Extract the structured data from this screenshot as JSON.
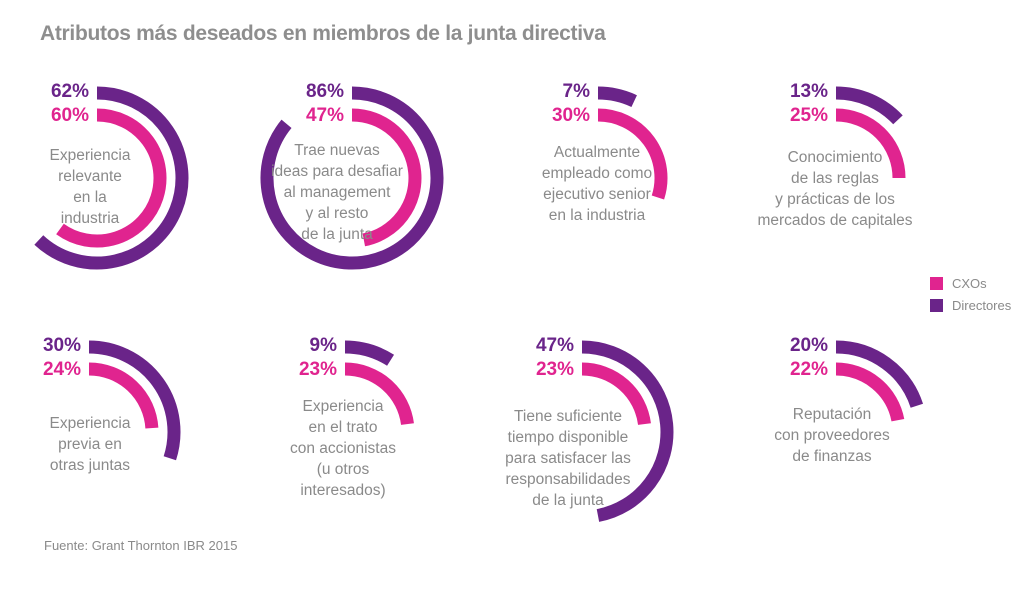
{
  "chart_data": {
    "type": "radial-bar",
    "title": "Atributos más deseados en miembros de la junta directiva",
    "source": "Fuente: Grant Thornton IBR 2015",
    "legend": {
      "placement": "right",
      "entries": [
        "CXOs",
        "Directores"
      ]
    },
    "series": [
      {
        "name": "CXOs",
        "color": "#e0248f"
      },
      {
        "name": "Directores",
        "color": "#6a2489"
      }
    ],
    "categories": [
      {
        "label": "Experiencia\nrelevante\nen la\nindustria",
        "CXOs": 60,
        "Directores": 62
      },
      {
        "label": "Trae nuevas\nideas para desafiar\nal management\ny al resto\nde la junta",
        "CXOs": 47,
        "Directores": 86
      },
      {
        "label": "Actualmente\nempleado como\nejecutivo senior\nen la industria",
        "CXOs": 30,
        "Directores": 7
      },
      {
        "label": "Conocimiento\nde las reglas\ny prácticas de los\nmercados de capitales",
        "CXOs": 25,
        "Directores": 13
      },
      {
        "label": "Experiencia\nprevia en\notras juntas",
        "CXOs": 24,
        "Directores": 30
      },
      {
        "label": "Experiencia\nen el trato\ncon accionistas\n(u otros\ninteresados)",
        "CXOs": 23,
        "Directores": 9
      },
      {
        "label": "Tiene suficiente\ntiempo disponible\npara satisfacer las\nresponsabilidades\nde la junta",
        "CXOs": 23,
        "Directores": 47
      },
      {
        "label": "Reputación\ncon proveedores\nde finanzas",
        "CXOs": 22,
        "Directores": 20
      }
    ],
    "value_suffix": "%"
  }
}
